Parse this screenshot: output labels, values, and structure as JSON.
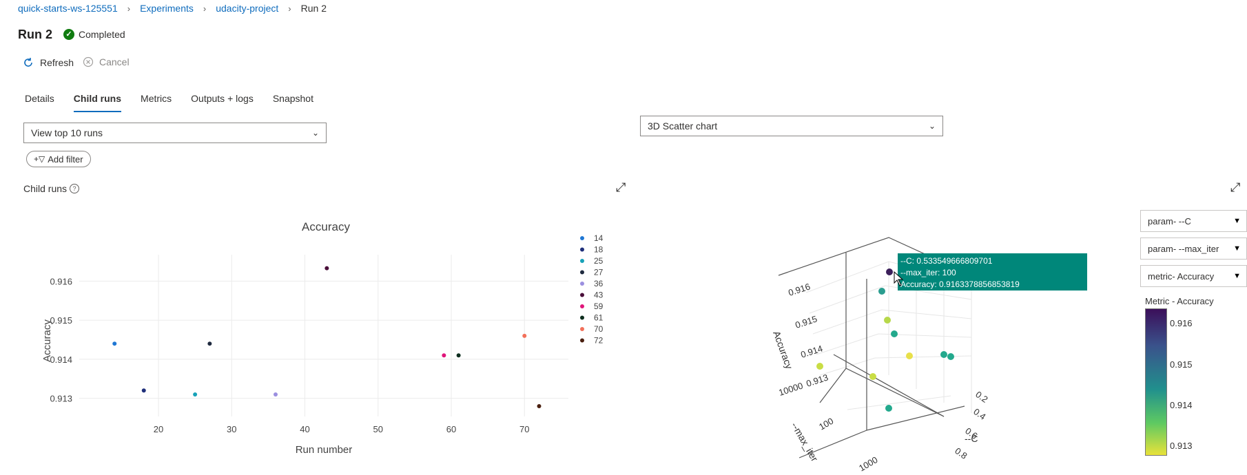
{
  "breadcrumb": {
    "items": [
      "quick-starts-ws-125551",
      "Experiments",
      "udacity-project"
    ],
    "current": "Run 2"
  },
  "run": {
    "title": "Run 2",
    "status": "Completed"
  },
  "commands": {
    "refresh": "Refresh",
    "cancel": "Cancel"
  },
  "tabs": [
    "Details",
    "Child runs",
    "Metrics",
    "Outputs + logs",
    "Snapshot"
  ],
  "active_tab": "Child runs",
  "view_dropdown": {
    "value": "View top 10 runs"
  },
  "chart_dropdown": {
    "value": "3D Scatter chart"
  },
  "add_filter": "Add filter",
  "child_runs_label": "Child runs",
  "param_dropdowns": [
    "param- --C",
    "param- --max_iter",
    "metric- Accuracy"
  ],
  "tooltip": {
    "c": "--C: 0.533549666809701",
    "max_iter": "--max_iter: 100",
    "accuracy": "Accuracy: 0.916337885685381­9"
  },
  "colorbar": {
    "title": "Metric - Accuracy",
    "ticks": [
      "0.916",
      "0.915",
      "0.914",
      "0.913"
    ]
  },
  "scatter3d": {
    "accuracy_ticks": [
      "0.916",
      "0.915",
      "0.914",
      "0.913"
    ],
    "accuracy_label": "Accuracy",
    "max_iter_ticks": [
      "10000",
      "100",
      "1000"
    ],
    "max_iter_label": "--max_iter",
    "c_ticks": [
      "0.2",
      "0.4",
      "0.6",
      "0.8"
    ],
    "c_label": "--C"
  },
  "chart_data": {
    "type": "scatter",
    "title": "Accuracy",
    "xlabel": "Run number",
    "ylabel": "Accuracy",
    "xlim": [
      12,
      76
    ],
    "ylim": [
      0.9128,
      0.9165
    ],
    "xticks": [
      20,
      30,
      40,
      50,
      60,
      70
    ],
    "yticks": [
      0.913,
      0.914,
      0.915,
      0.916
    ],
    "ytick_labels": [
      "0.913",
      "0.914",
      "0.915",
      "0.916"
    ],
    "legend_placement": "right",
    "grid": true,
    "series": [
      {
        "name": "14",
        "color": "#1f77d4",
        "x": 14,
        "y": 0.9144
      },
      {
        "name": "18",
        "color": "#1f2f7a",
        "x": 18,
        "y": 0.9132
      },
      {
        "name": "25",
        "color": "#17a2b8",
        "x": 25,
        "y": 0.9131
      },
      {
        "name": "27",
        "color": "#1f2a3f",
        "x": 27,
        "y": 0.9144
      },
      {
        "name": "36",
        "color": "#9b8fe0",
        "x": 36,
        "y": 0.9131
      },
      {
        "name": "43",
        "color": "#4a0f3a",
        "x": 43,
        "y": 0.91633
      },
      {
        "name": "59",
        "color": "#e0157a",
        "x": 59,
        "y": 0.9141
      },
      {
        "name": "61",
        "color": "#0d2e1e",
        "x": 61,
        "y": 0.9141
      },
      {
        "name": "70",
        "color": "#f2705a",
        "x": 70,
        "y": 0.9146
      },
      {
        "name": "72",
        "color": "#4a2010",
        "x": 72,
        "y": 0.9128
      }
    ]
  }
}
